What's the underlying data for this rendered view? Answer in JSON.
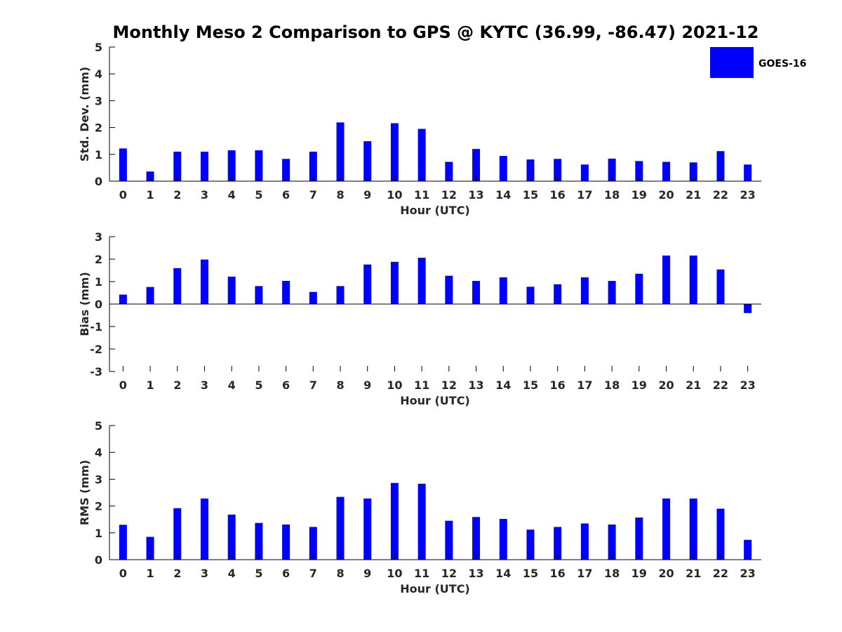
{
  "chart_data": {
    "title": "Monthly Meso 2 Comparison to GPS @ KYTC (36.99, -86.47) 2021-12",
    "legend": {
      "label": "GOES-16",
      "position": "top-right",
      "color": "#0000ff"
    },
    "panels": [
      {
        "type": "bar",
        "xlabel": "Hour (UTC)",
        "ylabel": "Std. Dev. (mm)",
        "ylim": [
          0,
          5
        ],
        "yticks": [
          "0",
          "1",
          "2",
          "3",
          "4",
          "5"
        ],
        "categories": [
          "0",
          "1",
          "2",
          "3",
          "4",
          "5",
          "6",
          "7",
          "8",
          "9",
          "10",
          "11",
          "12",
          "13",
          "14",
          "15",
          "16",
          "17",
          "18",
          "19",
          "20",
          "21",
          "22",
          "23"
        ],
        "series": [
          {
            "name": "GOES-16",
            "values": [
              1.22,
              0.36,
              1.1,
              1.1,
              1.15,
              1.15,
              0.83,
              1.1,
              2.19,
              1.49,
              2.16,
              1.95,
              0.72,
              1.2,
              0.94,
              0.81,
              0.83,
              0.62,
              0.84,
              0.75,
              0.72,
              0.7,
              1.12,
              0.62
            ]
          }
        ]
      },
      {
        "type": "bar",
        "xlabel": "Hour (UTC)",
        "ylabel": "Bias (mm)",
        "ylim": [
          -3,
          3
        ],
        "yticks": [
          "-3",
          "-2",
          "-1",
          "0",
          "1",
          "2",
          "3"
        ],
        "categories": [
          "0",
          "1",
          "2",
          "3",
          "4",
          "5",
          "6",
          "7",
          "8",
          "9",
          "10",
          "11",
          "12",
          "13",
          "14",
          "15",
          "16",
          "17",
          "18",
          "19",
          "20",
          "21",
          "22",
          "23"
        ],
        "series": [
          {
            "name": "GOES-16",
            "values": [
              0.42,
              0.76,
              1.6,
              1.98,
              1.22,
              0.8,
              1.03,
              0.54,
              0.8,
              1.76,
              1.88,
              2.06,
              1.26,
              1.03,
              1.19,
              0.77,
              0.88,
              1.19,
              1.03,
              1.35,
              2.16,
              2.16,
              1.54,
              -0.4
            ]
          }
        ]
      },
      {
        "type": "bar",
        "xlabel": "Hour (UTC)",
        "ylabel": "RMS (mm)",
        "ylim": [
          0,
          5
        ],
        "yticks": [
          "0",
          "1",
          "2",
          "3",
          "4",
          "5"
        ],
        "categories": [
          "0",
          "1",
          "2",
          "3",
          "4",
          "5",
          "6",
          "7",
          "8",
          "9",
          "10",
          "11",
          "12",
          "13",
          "14",
          "15",
          "16",
          "17",
          "18",
          "19",
          "20",
          "21",
          "22",
          "23"
        ],
        "series": [
          {
            "name": "GOES-16",
            "values": [
              1.3,
              0.85,
              1.92,
              2.28,
              1.68,
              1.37,
              1.31,
              1.22,
              2.34,
              2.28,
              2.86,
              2.83,
              1.45,
              1.59,
              1.52,
              1.12,
              1.22,
              1.35,
              1.31,
              1.57,
              2.28,
              2.28,
              1.9,
              0.74
            ]
          }
        ]
      }
    ]
  }
}
